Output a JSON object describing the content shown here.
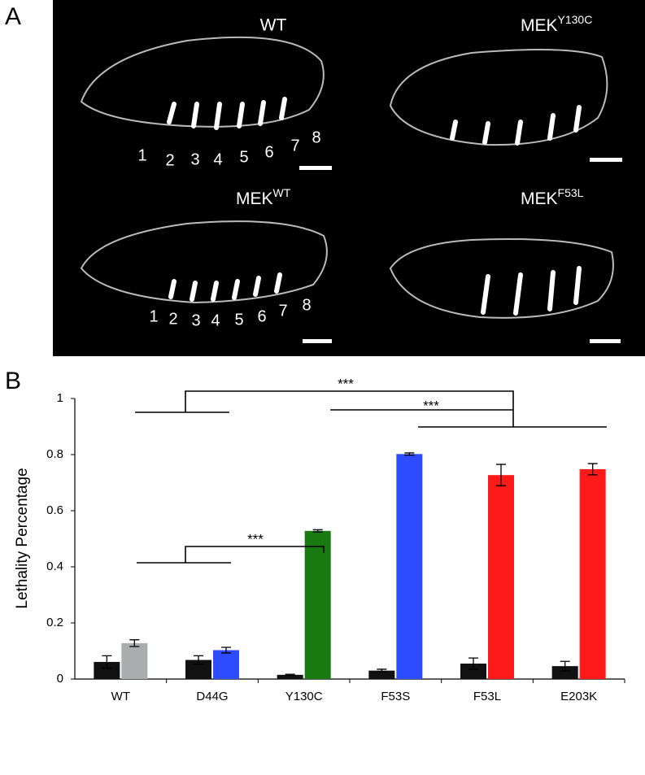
{
  "panel_a": {
    "label": "A",
    "images": [
      {
        "title": "WT"
      },
      {
        "title": "MEK",
        "superscript": "Y130C"
      },
      {
        "title": "MEK",
        "superscript": "WT"
      },
      {
        "title": "MEK",
        "superscript": "F53L"
      }
    ],
    "segments_wt": [
      1,
      2,
      3,
      4,
      5,
      6,
      7,
      8
    ],
    "segments_mek_wt": [
      1,
      2,
      3,
      4,
      5,
      6,
      7,
      8
    ]
  },
  "chart_data": {
    "type": "bar",
    "panel_label": "B",
    "ylabel": "Lethality Percentage",
    "categories": [
      "WT",
      "D44G",
      "Y130C",
      "F53S",
      "F53L",
      "E203K"
    ],
    "series": [
      {
        "colors": [
          "#111111",
          "#111111",
          "#111111",
          "#111111",
          "#111111",
          "#111111"
        ],
        "values": [
          0.061,
          0.068,
          0.015,
          0.03,
          0.055,
          0.046
        ],
        "errors": [
          0.022,
          0.015,
          0.002,
          0.005,
          0.02,
          0.017
        ]
      },
      {
        "colors": [
          "#a9adad",
          "#2e4cff",
          "#1a7a12",
          "#2e4cff",
          "#ff1a1a",
          "#ff1a1a"
        ],
        "values": [
          0.128,
          0.103,
          0.528,
          0.802,
          0.727,
          0.748
        ],
        "errors": [
          0.012,
          0.01,
          0.004,
          0.004,
          0.038,
          0.02
        ]
      }
    ],
    "ylim": [
      0,
      1
    ],
    "yticks": [
      0,
      0.2,
      0.4,
      0.6,
      0.8,
      1
    ],
    "annotations": [
      "***",
      "***",
      "***"
    ]
  }
}
